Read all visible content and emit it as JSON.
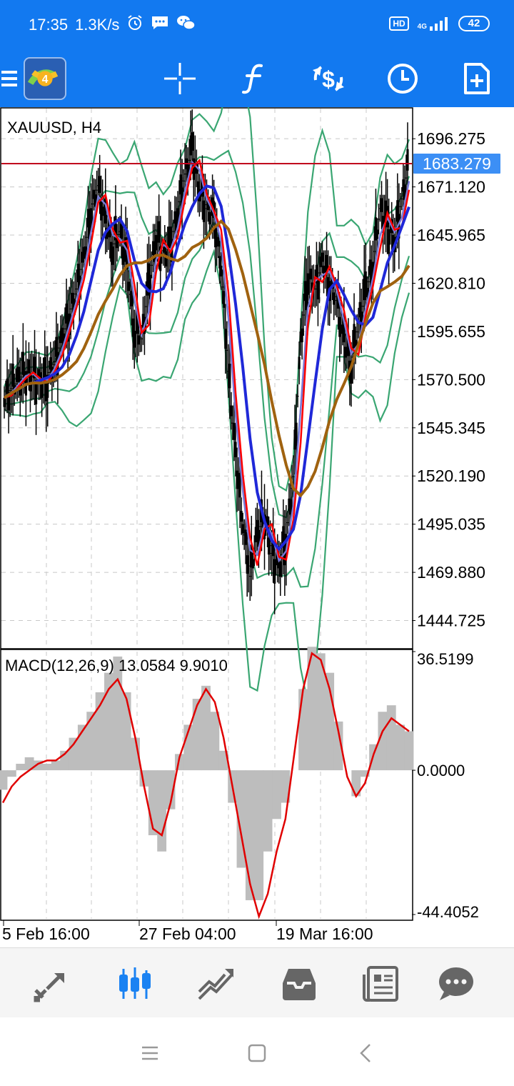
{
  "status_bar": {
    "time": "17:35",
    "net_speed": "1.3K/s",
    "icons": [
      "alarm-icon",
      "message-icon",
      "wechat-icon"
    ],
    "hd": "HD",
    "network": "4G",
    "battery": "42"
  },
  "toolbar": {
    "icons": [
      "menu-icon",
      "metatrader-logo",
      "crosshair-icon",
      "indicators-icon",
      "trade-icon",
      "timeframe-icon",
      "new-order-icon"
    ],
    "logo_number": "4"
  },
  "chart": {
    "symbol_label": "XAUUSD, H4",
    "current_price": "1683.279",
    "price_ticks": [
      "1696.275",
      "1671.120",
      "1645.965",
      "1620.810",
      "1595.655",
      "1570.500",
      "1545.345",
      "1520.190",
      "1495.035",
      "1469.880",
      "1444.725"
    ],
    "macd_label": "MACD(12,26,9) 13.0584 9.9010",
    "macd_ticks": [
      "36.5199",
      "0.0000",
      "-44.4052"
    ],
    "time_labels": [
      "5 Feb 16:00",
      "27 Feb 04:00",
      "19 Mar 16:00"
    ],
    "colors": {
      "price_line": "#c0001d",
      "price_badge": "#3c8ff5",
      "bollinger": "#3aa672",
      "ma_fast": "#ff0000",
      "ma_medium": "#1f28d8",
      "ma_slow": "#a0620f",
      "candles": "#000000",
      "macd_hist": "#bdbdbd",
      "macd_signal": "#e00000"
    }
  },
  "chart_data": {
    "type": "line",
    "title": "XAUUSD, H4",
    "y_range": [
      1430,
      1712
    ],
    "macd_range": [
      -44.4052,
      36.5199
    ],
    "close": [
      1561,
      1566,
      1570,
      1575,
      1572,
      1568,
      1573,
      1580,
      1592,
      1605,
      1618,
      1635,
      1660,
      1672,
      1652,
      1640,
      1648,
      1628,
      1596,
      1592,
      1620,
      1646,
      1636,
      1640,
      1660,
      1678,
      1690,
      1670,
      1660,
      1655,
      1630,
      1575,
      1530,
      1495,
      1468,
      1490,
      1500,
      1480,
      1472,
      1490,
      1520,
      1590,
      1626,
      1618,
      1632,
      1622,
      1612,
      1590,
      1578,
      1600,
      1615,
      1632,
      1660,
      1650,
      1645,
      1665,
      1683.279
    ],
    "macd_hist": [
      -6,
      -2,
      2,
      4,
      3,
      2,
      3,
      6,
      10,
      14,
      18,
      24,
      30,
      35,
      24,
      10,
      -5,
      -20,
      -25,
      -12,
      5,
      14,
      22,
      26,
      18,
      6,
      -10,
      -30,
      -40,
      -40,
      -25,
      -15,
      -10,
      0,
      25,
      38,
      36,
      30,
      15,
      0,
      -8,
      -2,
      8,
      18,
      20,
      14,
      12
    ],
    "macd_signal": [
      -10,
      -5,
      -2,
      0,
      2,
      3,
      3,
      5,
      8,
      12,
      16,
      20,
      25,
      28,
      22,
      10,
      -5,
      -18,
      -20,
      -10,
      4,
      12,
      20,
      25,
      21,
      10,
      -5,
      -20,
      -35,
      -45,
      -38,
      -25,
      -15,
      5,
      25,
      36,
      34,
      25,
      12,
      -2,
      -8,
      -4,
      5,
      12,
      16,
      14,
      12
    ]
  }
}
